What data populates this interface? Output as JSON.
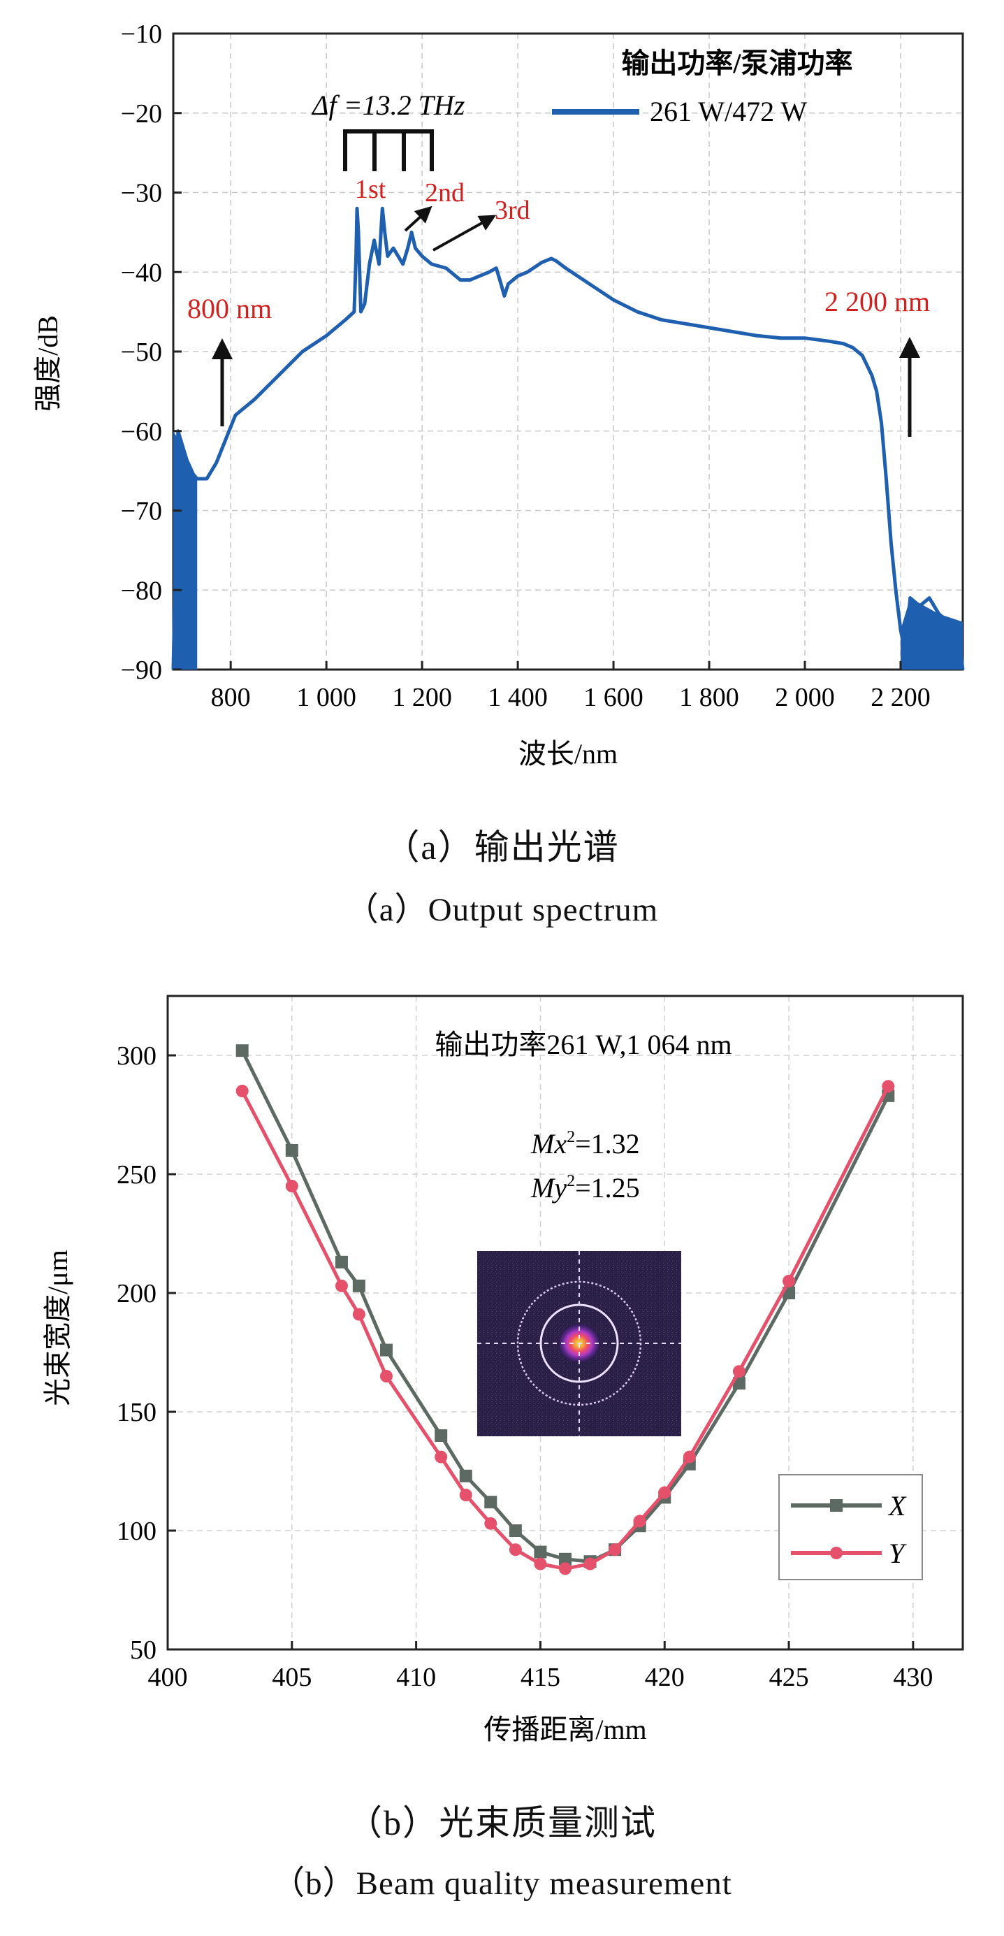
{
  "figure": {
    "caption_a_zh": "（a）输出光谱",
    "caption_a_en": "（a）Output spectrum",
    "caption_b_zh": "（b）光束质量测试",
    "caption_b_en": "（b）Beam quality measurement"
  },
  "chart_data": [
    {
      "type": "line",
      "title": "",
      "xlabel": "波长/nm",
      "ylabel": "强度/dB",
      "xlim": [
        680,
        2330
      ],
      "ylim": [
        -90,
        -10
      ],
      "xticks": [
        800,
        1000,
        1200,
        1400,
        1600,
        1800,
        2000,
        2200
      ],
      "xtick_labels": [
        "800",
        "1 000",
        "1 200",
        "1 400",
        "1 600",
        "1 800",
        "2 000",
        "2 200"
      ],
      "yticks": [
        -90,
        -80,
        -70,
        -60,
        -50,
        -40,
        -30,
        -20,
        -10
      ],
      "ytick_labels": [
        "−90",
        "−80",
        "−70",
        "−60",
        "−50",
        "−40",
        "−30",
        "−20",
        "−10"
      ],
      "grid": true,
      "legend_title": "输出功率/泵浦功率",
      "legend_position": "top-right",
      "series": [
        {
          "name": "261 W/472 W",
          "color": "#1f5fb0",
          "x": [
            680,
            690,
            700,
            715,
            730,
            750,
            770,
            790,
            810,
            850,
            900,
            950,
            1000,
            1040,
            1058,
            1062,
            1064,
            1067,
            1072,
            1080,
            1090,
            1100,
            1110,
            1117,
            1122,
            1128,
            1140,
            1160,
            1170,
            1178,
            1186,
            1200,
            1220,
            1250,
            1280,
            1300,
            1320,
            1340,
            1355,
            1365,
            1372,
            1380,
            1400,
            1420,
            1450,
            1470,
            1480,
            1500,
            1550,
            1600,
            1650,
            1700,
            1750,
            1800,
            1850,
            1900,
            1950,
            2000,
            2050,
            2080,
            2100,
            2120,
            2140,
            2150,
            2160,
            2170,
            2180,
            2190,
            2200,
            2210,
            2220,
            2240,
            2260,
            2280,
            2300,
            2320,
            2330
          ],
          "y": [
            -90,
            -60,
            -62,
            -65,
            -66,
            -66,
            -64,
            -61,
            -58,
            -56,
            -53,
            -50,
            -48,
            -46,
            -45,
            -38,
            -32,
            -35,
            -45,
            -44,
            -39,
            -36,
            -39,
            -32,
            -35,
            -38,
            -37,
            -39,
            -37,
            -35,
            -37,
            -38,
            -39,
            -39.5,
            -41,
            -41,
            -40.5,
            -40,
            -39.5,
            -41.5,
            -43,
            -41.5,
            -40.5,
            -40,
            -38.8,
            -38.3,
            -38.6,
            -39.5,
            -41.5,
            -43.5,
            -45,
            -46,
            -46.5,
            -47,
            -47.5,
            -48,
            -48.3,
            -48.3,
            -48.7,
            -49,
            -49.5,
            -50.5,
            -53,
            -55,
            -59,
            -66,
            -74,
            -80,
            -85,
            -88,
            -81,
            -82,
            -81,
            -83,
            -84,
            -85,
            -90
          ]
        }
      ],
      "annotations": [
        {
          "text": "1st",
          "color": "#d0201f"
        },
        {
          "text": "2nd",
          "color": "#d0201f"
        },
        {
          "text": "3rd",
          "color": "#d0201f"
        },
        {
          "text": "800 nm",
          "color": "#d0201f"
        },
        {
          "text": "2 200 nm",
          "color": "#d0201f"
        },
        {
          "text": "Δf =13.2 THz",
          "color": "#111111"
        }
      ]
    },
    {
      "type": "line",
      "title": "输出功率261 W,1 064 nm",
      "xlabel": "传播距离/mm",
      "ylabel": "光束宽度/μm",
      "xlim": [
        400,
        432
      ],
      "ylim": [
        50,
        325
      ],
      "xticks": [
        400,
        405,
        410,
        415,
        420,
        425,
        430
      ],
      "yticks": [
        50,
        100,
        150,
        200,
        250,
        300
      ],
      "grid": true,
      "legend_position": "bottom-right",
      "m2": {
        "x_label": "Mx",
        "x_value": "=1.32",
        "y_label": "My",
        "y_value": "=1.25",
        "sup": "2"
      },
      "series": [
        {
          "name": "X",
          "color": "#5d6a63",
          "x": [
            403,
            405,
            407,
            407.7,
            408.8,
            411,
            412,
            413,
            414,
            415,
            416,
            417,
            418,
            419,
            420,
            421,
            423,
            425,
            429
          ],
          "y": [
            302,
            260,
            213,
            203,
            176,
            140,
            123,
            112,
            100,
            91,
            88,
            87,
            92,
            102,
            114,
            128,
            162,
            200,
            283
          ]
        },
        {
          "name": "Y",
          "color": "#e5506a",
          "x": [
            403,
            405,
            407,
            407.7,
            408.8,
            411,
            412,
            413,
            414,
            415,
            416,
            417,
            418,
            419,
            420,
            421,
            423,
            425,
            429
          ],
          "y": [
            285,
            245,
            203,
            191,
            165,
            131,
            115,
            103,
            92,
            86,
            84,
            86,
            92,
            104,
            116,
            131,
            167,
            205,
            287
          ]
        }
      ]
    }
  ]
}
